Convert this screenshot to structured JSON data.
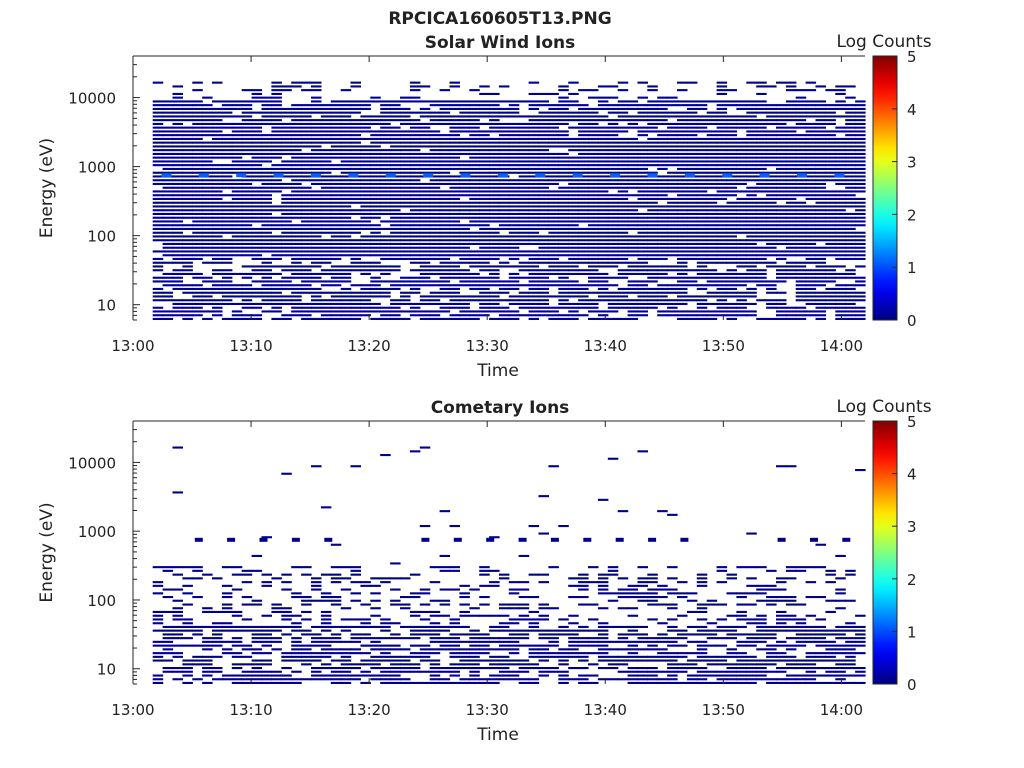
{
  "figure_title": "RPCICA160605T13.PNG",
  "chart_data": [
    {
      "type": "heatmap",
      "title": "Solar Wind Ions",
      "xlabel": "Time",
      "ylabel": "Energy (eV)",
      "y_scale": "log",
      "ylim": [
        6,
        40000
      ],
      "y_ticks": [
        10,
        100,
        1000,
        10000
      ],
      "y_tick_labels": [
        "10",
        "100",
        "1000",
        "10000"
      ],
      "xlim": [
        "13:00",
        "14:02"
      ],
      "x_ticks": [
        "13:00",
        "13:10",
        "13:20",
        "13:30",
        "13:40",
        "13:50",
        "14:00"
      ],
      "data_start": "13:01:40",
      "data_end": "14:02:00",
      "colorbar": {
        "label": "Log Counts",
        "range": [
          0,
          5
        ],
        "ticks": [
          "0",
          "1",
          "2",
          "3",
          "4",
          "5"
        ],
        "colormap": "jet"
      },
      "features": {
        "background_level_log_counts": 0.1,
        "fill_fraction_high_energy": 0.55,
        "fill_fraction_mid_energy": 0.95,
        "fill_fraction_low_energy": 0.75,
        "peak_energy_ev": 750,
        "peak_level_log_counts": 1.1,
        "peak_times": [
          "13:02:50",
          "13:06:00",
          "13:09:10",
          "13:12:20",
          "13:15:30",
          "13:18:40",
          "13:21:50",
          "13:25:00",
          "13:28:10",
          "13:31:20",
          "13:34:30",
          "13:37:40",
          "13:40:50",
          "13:44:00",
          "13:47:10",
          "13:50:20",
          "13:53:30",
          "13:56:40",
          "13:59:50"
        ]
      }
    },
    {
      "type": "heatmap",
      "title": "Cometary Ions",
      "xlabel": "Time",
      "ylabel": "Energy (eV)",
      "y_scale": "log",
      "ylim": [
        6,
        40000
      ],
      "y_ticks": [
        10,
        100,
        1000,
        10000
      ],
      "y_tick_labels": [
        "10",
        "100",
        "1000",
        "10000"
      ],
      "xlim": [
        "13:00",
        "14:02"
      ],
      "x_ticks": [
        "13:00",
        "13:10",
        "13:20",
        "13:30",
        "13:40",
        "13:50",
        "14:00"
      ],
      "data_start": "13:01:40",
      "data_end": "14:02:00",
      "colorbar": {
        "label": "Log Counts",
        "range": [
          0,
          5
        ],
        "ticks": [
          "0",
          "1",
          "2",
          "3",
          "4",
          "5"
        ],
        "colormap": "jet"
      },
      "features": {
        "background_level_log_counts": 0.05,
        "fill_fraction_low_energy": 0.7,
        "fill_fraction_mid_energy": 0.35,
        "burst_energy_ev": 750,
        "upper_energy_cutoff_ev": 300
      }
    }
  ]
}
